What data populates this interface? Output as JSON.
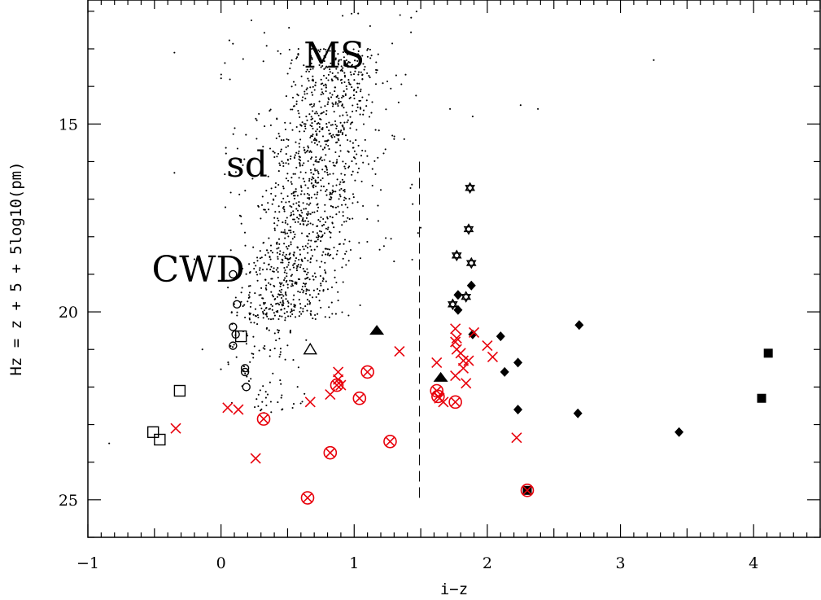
{
  "chart_data": {
    "type": "scatter",
    "title": "",
    "xlabel": "i−z",
    "ylabel": "Hz = z + 5 + 5log10(pm)",
    "xlim": [
      -1,
      4.5
    ],
    "ylim": [
      26,
      11.7
    ],
    "y_inverted": true,
    "grid": false,
    "x_ticks": [
      -1,
      0,
      1,
      2,
      3,
      4
    ],
    "x_tick_labels": [
      "−1",
      "0",
      "1",
      "2",
      "3",
      "4"
    ],
    "y_ticks": [
      15,
      20,
      25
    ],
    "y_tick_labels": [
      "15",
      "20",
      "25"
    ],
    "annotations": [
      {
        "text": "MS",
        "x": 0.62,
        "y": 13.5
      },
      {
        "text": "sd",
        "x": 0.04,
        "y": 16.4
      },
      {
        "text": "CWD",
        "x": -0.52,
        "y": 19.2
      }
    ],
    "divider": {
      "style": "dashed",
      "x": 1.49,
      "y": [
        16.0,
        25.0
      ]
    },
    "background_field": {
      "n": 1450,
      "seed": 7
    },
    "series": [
      {
        "marker": "open-circle",
        "color": "#000000",
        "points": [
          [
            0.09,
            19.0
          ],
          [
            0.12,
            19.8
          ],
          [
            0.09,
            20.4
          ],
          [
            0.11,
            20.6
          ],
          [
            0.09,
            20.9
          ],
          [
            0.18,
            21.5
          ],
          [
            0.18,
            21.6
          ],
          [
            0.19,
            22.0
          ]
        ]
      },
      {
        "marker": "open-square",
        "color": "#000000",
        "points": [
          [
            0.15,
            20.65
          ],
          [
            -0.31,
            22.1
          ],
          [
            -0.51,
            23.2
          ],
          [
            -0.46,
            23.4
          ]
        ]
      },
      {
        "marker": "open-triangle",
        "color": "#000000",
        "points": [
          [
            0.67,
            21.0
          ]
        ]
      },
      {
        "marker": "filled-triangle",
        "color": "#000000",
        "points": [
          [
            1.17,
            20.5
          ],
          [
            1.65,
            21.75
          ]
        ]
      },
      {
        "marker": "star",
        "color": "#000000",
        "points": [
          [
            1.87,
            16.7
          ],
          [
            1.86,
            17.8
          ],
          [
            1.77,
            18.5
          ],
          [
            1.88,
            18.7
          ],
          [
            1.74,
            19.8
          ],
          [
            1.84,
            19.6
          ]
        ]
      },
      {
        "marker": "filled-diamond",
        "color": "#000000",
        "points": [
          [
            1.88,
            19.3
          ],
          [
            1.78,
            19.55
          ],
          [
            1.78,
            19.95
          ],
          [
            1.89,
            20.6
          ],
          [
            2.1,
            20.65
          ],
          [
            2.69,
            20.35
          ],
          [
            2.13,
            21.6
          ],
          [
            2.23,
            21.35
          ],
          [
            2.23,
            22.6
          ],
          [
            2.68,
            22.7
          ],
          [
            3.44,
            23.2
          ]
        ]
      },
      {
        "marker": "filled-square",
        "color": "#000000",
        "points": [
          [
            4.11,
            21.1
          ],
          [
            4.06,
            22.3
          ],
          [
            2.3,
            24.75
          ]
        ]
      },
      {
        "marker": "cross",
        "color": "#e8000b",
        "points": [
          [
            -0.34,
            23.1
          ],
          [
            0.05,
            22.55
          ],
          [
            0.13,
            22.6
          ],
          [
            0.26,
            23.9
          ],
          [
            0.67,
            22.4
          ],
          [
            0.82,
            22.2
          ],
          [
            0.88,
            21.8
          ],
          [
            0.88,
            21.6
          ],
          [
            0.9,
            21.95
          ],
          [
            1.34,
            21.05
          ],
          [
            1.62,
            21.35
          ],
          [
            1.64,
            22.3
          ],
          [
            1.67,
            22.4
          ],
          [
            1.76,
            20.45
          ],
          [
            1.77,
            20.7
          ],
          [
            1.77,
            21.0
          ],
          [
            1.8,
            21.1
          ],
          [
            1.82,
            21.3
          ],
          [
            1.82,
            21.5
          ],
          [
            1.86,
            21.3
          ],
          [
            1.76,
            21.7
          ],
          [
            1.84,
            21.9
          ],
          [
            1.76,
            20.8
          ],
          [
            1.9,
            20.55
          ],
          [
            2.0,
            20.9
          ],
          [
            2.04,
            21.2
          ],
          [
            2.22,
            23.35
          ]
        ]
      },
      {
        "marker": "circled-cross",
        "color": "#e8000b",
        "points": [
          [
            0.32,
            22.85
          ],
          [
            0.65,
            24.95
          ],
          [
            0.82,
            23.75
          ],
          [
            0.87,
            21.95
          ],
          [
            1.04,
            22.3
          ],
          [
            1.1,
            21.6
          ],
          [
            1.27,
            23.45
          ],
          [
            1.62,
            22.1
          ],
          [
            1.63,
            22.25
          ],
          [
            1.76,
            22.4
          ],
          [
            2.3,
            24.75
          ]
        ]
      }
    ]
  }
}
